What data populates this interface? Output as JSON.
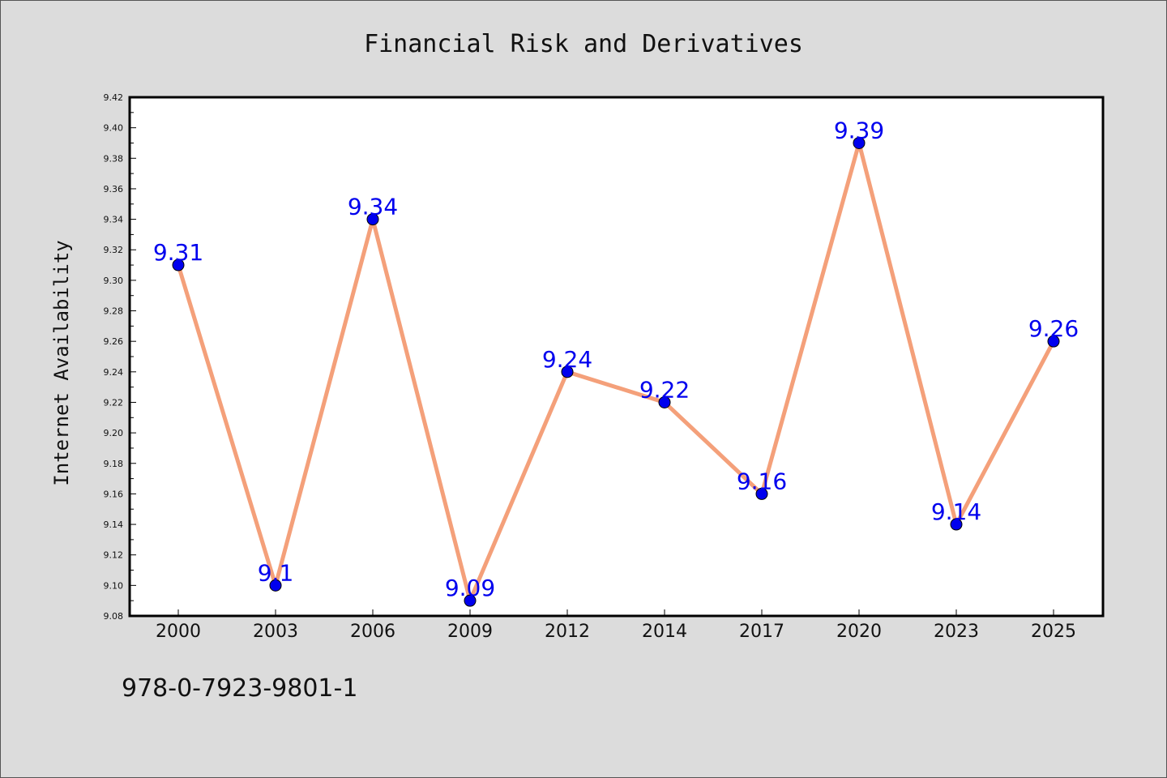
{
  "chart_data": {
    "type": "line",
    "title": "Financial Risk and Derivatives",
    "xlabel": "",
    "ylabel": "Internet Availability",
    "categories": [
      "2000",
      "2003",
      "2006",
      "2009",
      "2012",
      "2014",
      "2017",
      "2020",
      "2023",
      "2025"
    ],
    "series": [
      {
        "values": [
          9.31,
          9.1,
          9.34,
          9.09,
          9.24,
          9.22,
          9.16,
          9.39,
          9.14,
          9.26
        ],
        "labels": [
          "9.31",
          "9.1",
          "9.34",
          "9.09",
          "9.24",
          "9.22",
          "9.16",
          "9.39",
          "9.14",
          "9.26"
        ],
        "line_color": "#f4a07a",
        "marker_color": "#0000ee",
        "label_color": "#0000ee"
      }
    ],
    "ylim": [
      9.08,
      9.42
    ],
    "yticks": [
      "9.08",
      "9.10",
      "9.12",
      "9.14",
      "9.16",
      "9.18",
      "9.20",
      "9.22",
      "9.24",
      "9.26",
      "9.28",
      "9.30",
      "9.32",
      "9.34",
      "9.36",
      "9.38",
      "9.40",
      "9.42"
    ],
    "grid": false,
    "legend": "none"
  },
  "footer": {
    "code": "978-0-7923-9801-1"
  }
}
